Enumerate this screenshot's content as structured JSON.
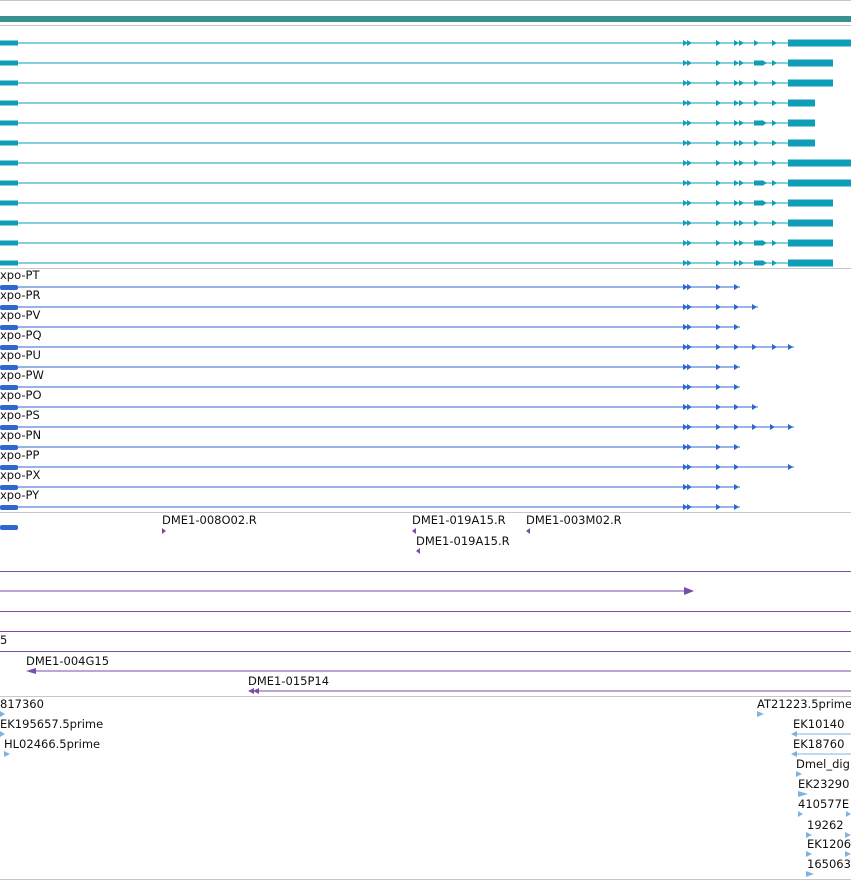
{
  "colors": {
    "gene_bar": "#3a8f8f",
    "transcript_teal": "#0e9eb8",
    "transcript_blue": "#2f67d0",
    "clone_purple": "#7a4cae",
    "est_light_blue": "#7fb3e0",
    "separator": "#c8c8c8"
  },
  "gene_track": {
    "transcripts": 12
  },
  "cds_track": {
    "labels": [
      "xpo-PT",
      "xpo-PR",
      "xpo-PV",
      "xpo-PQ",
      "xpo-PU",
      "xpo-PW",
      "xpo-PO",
      "xpo-PS",
      "xpo-PN",
      "xpo-PP",
      "xpo-PX",
      "xpo-PY"
    ]
  },
  "clone_ends": {
    "labels": [
      "DME1-008O02.R",
      "DME1-019A15.R",
      "DME1-003M02.R",
      "DME1-019A15.R"
    ]
  },
  "clone_rows": {
    "labels": [
      "5",
      "DME1-004G15",
      "DME1-015P14"
    ]
  },
  "est_track": {
    "labels": [
      "817360",
      "EK195657.5prime",
      "HL02466.5prime",
      "AT21223.5prime",
      "EK10140",
      "EK18760",
      "Dmel_dig",
      "EK23290",
      "410577E",
      "19262",
      "EK1206",
      "165063"
    ]
  }
}
